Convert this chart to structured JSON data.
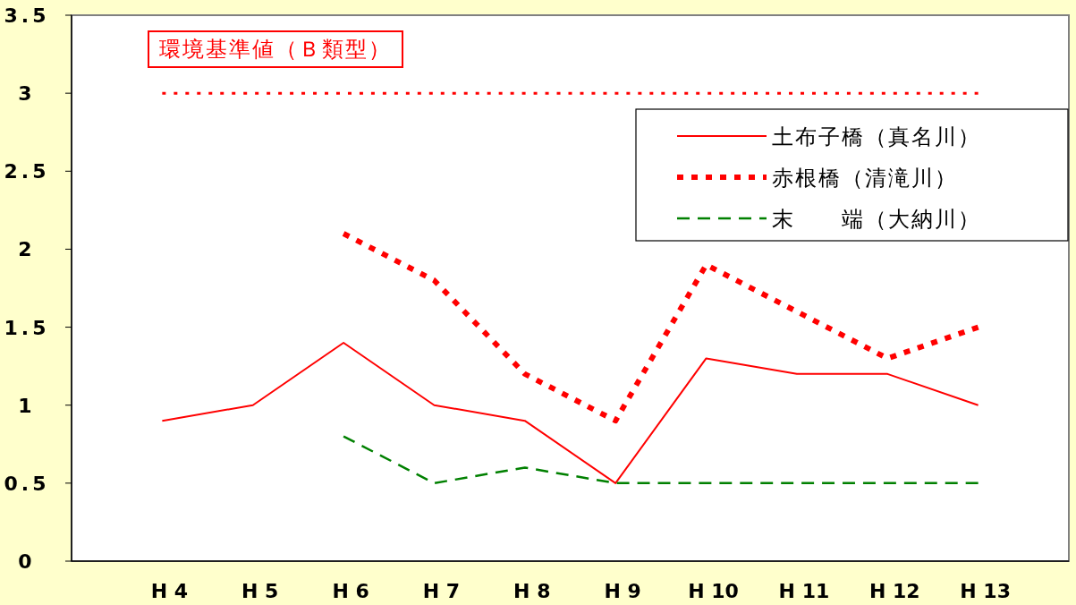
{
  "chart_data": {
    "type": "line",
    "categories": [
      "H 4",
      "H 5",
      "H 6",
      "H 7",
      "H 8",
      "H 9",
      "H 10",
      "H 11",
      "H 12",
      "H 13"
    ],
    "series": [
      {
        "name": "土布子橋（真名川）",
        "color": "#ff0000",
        "line_style": "solid",
        "values": [
          0.9,
          1.0,
          1.4,
          1.0,
          0.9,
          0.5,
          1.3,
          1.2,
          1.2,
          1.0
        ]
      },
      {
        "name": "赤根橋（清滝川）",
        "color": "#ff0000",
        "line_style": "dotted",
        "values": [
          null,
          null,
          2.1,
          1.8,
          1.2,
          0.9,
          1.9,
          1.6,
          1.3,
          1.5
        ]
      },
      {
        "name": "末　　端（大納川）",
        "color": "#008000",
        "line_style": "dashed",
        "values": [
          null,
          null,
          0.8,
          0.5,
          0.6,
          0.5,
          0.5,
          0.5,
          0.5,
          0.5
        ]
      }
    ],
    "ylim": [
      0,
      3.5
    ],
    "yticks": [
      0,
      0.5,
      1,
      1.5,
      2,
      2.5,
      3,
      3.5
    ],
    "ref_lines": [
      {
        "axis": "y",
        "value": 3,
        "label": "環境基準値（Ｂ類型）",
        "color": "#ff0000",
        "line_style": "dotted"
      }
    ],
    "grid": false,
    "legend": "top right",
    "marker": "none"
  }
}
